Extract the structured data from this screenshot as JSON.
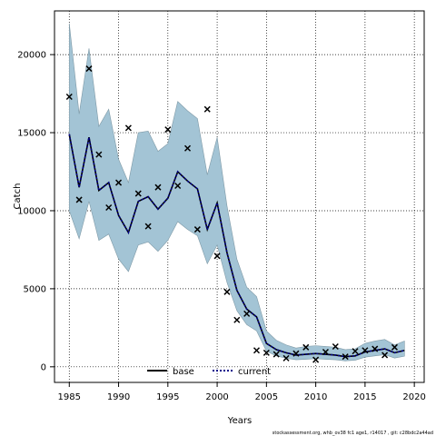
{
  "chart_data": {
    "type": "line",
    "xlabel": "Years",
    "ylabel": "Catch",
    "xlim": [
      1983.5,
      2021
    ],
    "ylim": [
      -1000,
      22800
    ],
    "x_ticks": [
      1985,
      1990,
      1995,
      2000,
      2005,
      2010,
      2015,
      2020
    ],
    "y_ticks": [
      0,
      5000,
      10000,
      15000,
      20000
    ],
    "grid": true,
    "legend": {
      "placement": "bottom-center",
      "entries": [
        "base",
        "current"
      ]
    },
    "footnote": "stockassessment.org, whb_ov38 fc1 age1, r14017 , git: c28bdc2a44ad",
    "colors": {
      "band": "#a3c4d5",
      "band_edge": "#7e99a6",
      "base": "#000000",
      "current": "#00008b",
      "observed": "#000000"
    },
    "years": [
      1985,
      1986,
      1987,
      1988,
      1989,
      1990,
      1991,
      1992,
      1993,
      1994,
      1995,
      1996,
      1997,
      1998,
      1999,
      2000,
      2001,
      2002,
      2003,
      2004,
      2005,
      2006,
      2007,
      2008,
      2009,
      2010,
      2011,
      2012,
      2013,
      2014,
      2015,
      2016,
      2017,
      2018,
      2019
    ],
    "series": [
      {
        "name": "base",
        "style": "solid",
        "values": [
          14900,
          11500,
          14700,
          11300,
          11800,
          9700,
          8600,
          10600,
          10900,
          10100,
          10800,
          12500,
          11900,
          11400,
          8800,
          10500,
          7300,
          4900,
          3700,
          3200,
          1500,
          1100,
          900,
          750,
          800,
          850,
          800,
          750,
          650,
          700,
          950,
          1050,
          1150,
          900,
          1050
        ]
      },
      {
        "name": "current",
        "style": "dotted",
        "values": [
          14900,
          11500,
          14700,
          11300,
          11800,
          9700,
          8600,
          10600,
          10900,
          10100,
          10800,
          12500,
          11900,
          11400,
          8800,
          10500,
          7300,
          4900,
          3700,
          3200,
          1500,
          1100,
          900,
          750,
          800,
          850,
          800,
          750,
          650,
          700,
          950,
          1050,
          1150,
          900,
          1050
        ]
      }
    ],
    "band_upper": [
      22000,
      16200,
      20400,
      15400,
      16500,
      13300,
      11800,
      15000,
      15100,
      13800,
      14300,
      17000,
      16400,
      15900,
      12300,
      14700,
      10300,
      6900,
      5100,
      4500,
      2300,
      1700,
      1400,
      1200,
      1300,
      1350,
      1300,
      1250,
      1100,
      1150,
      1500,
      1650,
      1750,
      1400,
      1650
    ],
    "band_lower": [
      10000,
      8200,
      10600,
      8100,
      8500,
      6900,
      6100,
      7800,
      8000,
      7400,
      8100,
      9300,
      8800,
      8400,
      6600,
      7800,
      5400,
      3600,
      2700,
      2300,
      1000,
      700,
      550,
      450,
      480,
      520,
      480,
      450,
      380,
      420,
      620,
      700,
      780,
      560,
      680
    ],
    "observed": [
      17300,
      10700,
      19100,
      13600,
      10200,
      11800,
      15300,
      11100,
      9000,
      11500,
      15200,
      11600,
      14000,
      8800,
      16500,
      7100,
      4800,
      3000,
      3400,
      1050,
      900,
      800,
      550,
      850,
      1250,
      450,
      950,
      1300,
      650,
      1000,
      1050,
      1150,
      750,
      1250
    ]
  }
}
